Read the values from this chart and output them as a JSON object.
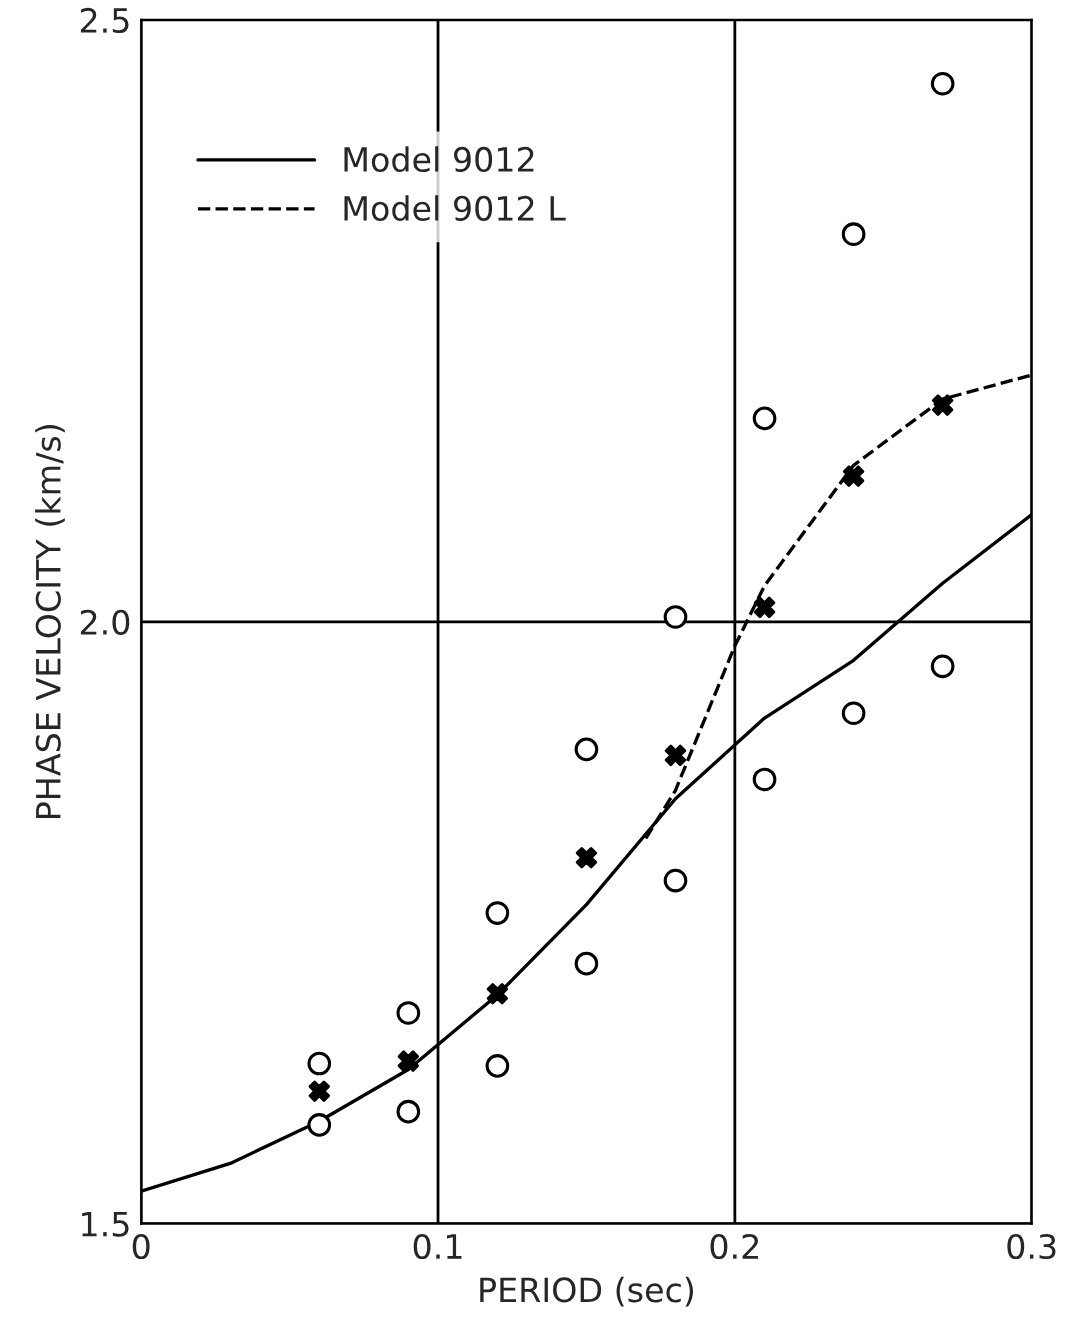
{
  "chart_data": {
    "type": "line",
    "xlabel": "PERIOD (sec)",
    "ylabel": "PHASE VELOCITY (km/s)",
    "xlim": [
      0,
      0.3
    ],
    "ylim": [
      1.5,
      2.5
    ],
    "xticks": [
      0,
      0.1,
      0.2,
      0.3
    ],
    "yticks": [
      1.5,
      {
        "value": 2.0,
        "label": "2.0"
      },
      2.5
    ],
    "grid": true,
    "legend": "top left",
    "series": [
      {
        "name": "Model 9012",
        "type": "line",
        "line_style": "solid",
        "marker": "none",
        "color": "#000000",
        "x": [
          0,
          0.03,
          0.06,
          0.09,
          0.12,
          0.15,
          0.18,
          0.21,
          0.24,
          0.27,
          0.3
        ],
        "values": [
          1.527,
          1.55,
          1.585,
          1.628,
          1.69,
          1.765,
          1.853,
          1.92,
          1.968,
          2.032,
          2.089
        ]
      },
      {
        "name": "Model 9012 L",
        "type": "line",
        "line_style": "dashed",
        "marker": "none",
        "color": "#000000",
        "x": [
          0.17,
          0.18,
          0.19,
          0.2,
          0.21,
          0.24,
          0.27,
          0.3
        ],
        "values": [
          1.82,
          1.86,
          1.92,
          1.98,
          2.03,
          2.13,
          2.185,
          2.205
        ]
      },
      {
        "type": "scatter",
        "marker": "circle",
        "color": "#000000",
        "x": [
          0.06,
          0.06,
          0.09,
          0.09,
          0.12,
          0.12,
          0.15,
          0.15,
          0.18,
          0.18,
          0.21,
          0.21,
          0.24,
          0.24,
          0.27,
          0.27
        ],
        "values": [
          1.633,
          1.582,
          1.675,
          1.593,
          1.758,
          1.631,
          1.894,
          1.716,
          2.004,
          1.785,
          2.169,
          1.869,
          2.322,
          1.924,
          2.447,
          1.963
        ]
      },
      {
        "type": "scatter",
        "marker": "cross",
        "color": "#000000",
        "x": [
          0.06,
          0.09,
          0.12,
          0.15,
          0.18,
          0.21,
          0.24,
          0.27
        ],
        "values": [
          1.61,
          1.635,
          1.691,
          1.804,
          1.889,
          2.012,
          2.121,
          2.18
        ]
      }
    ]
  }
}
